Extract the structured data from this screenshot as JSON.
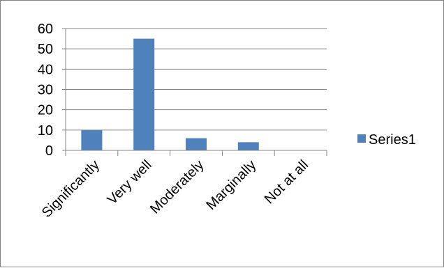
{
  "chart_data": {
    "type": "bar",
    "categories": [
      "Significantly",
      "Very well",
      "Moderately",
      "Marginally",
      "Not at all"
    ],
    "series": [
      {
        "name": "Series1",
        "values": [
          10,
          55,
          6,
          4,
          0
        ]
      }
    ],
    "title": "",
    "xlabel": "",
    "ylabel": "",
    "ylim": [
      0,
      60
    ],
    "yticks": [
      0,
      10,
      20,
      30,
      40,
      50,
      60
    ],
    "grid": true,
    "legend": "right",
    "colors": {
      "bar": "#4f81bd",
      "grid": "#868686",
      "axis": "#868686"
    }
  }
}
